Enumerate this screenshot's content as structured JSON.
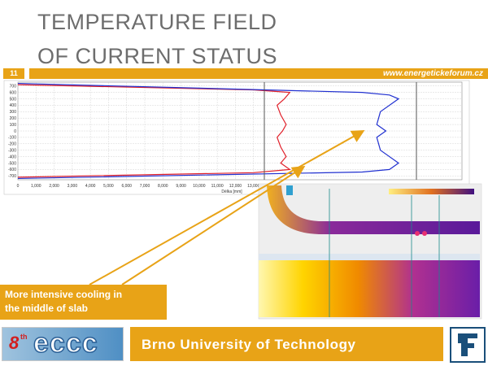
{
  "slide": {
    "title_lines": [
      "TEMPERATURE FIELD",
      "OF CURRENT STATUS"
    ],
    "number": "11",
    "url": "www.energetickeforum.cz",
    "callout_lines": [
      "More intensive cooling in",
      "the middle of slab"
    ],
    "footer": "Brno University of Technology",
    "logo": {
      "number": "8",
      "suffix": "th",
      "text": "eccc"
    }
  },
  "chart_data": {
    "type": "line",
    "x_label": "Délka [mm]",
    "xlim": [
      0,
      24500
    ],
    "ylim": [
      -760,
      760
    ],
    "xticks": [
      0,
      {
        "value": 1000,
        "label": "1,000"
      },
      {
        "value": 2000,
        "label": "2,000"
      },
      {
        "value": 3000,
        "label": "3,000"
      },
      {
        "value": 4000,
        "label": "4,000"
      },
      {
        "value": 5000,
        "label": "5,000"
      },
      {
        "value": 6000,
        "label": "6,000"
      },
      {
        "value": 7000,
        "label": "7,000"
      },
      {
        "value": 8000,
        "label": "8,000"
      },
      {
        "value": 9000,
        "label": "9,000"
      },
      {
        "value": 10000,
        "label": "10,000"
      },
      {
        "value": 11000,
        "label": "11,000"
      },
      {
        "value": 12000,
        "label": "12,000"
      },
      {
        "value": 13000,
        "label": "13,000"
      }
    ],
    "yticks": [
      700,
      600,
      500,
      400,
      300,
      200,
      100,
      0,
      -100,
      -200,
      -300,
      -400,
      -500,
      -600,
      -700
    ],
    "grid": true,
    "series": [
      {
        "color": "#e0202a",
        "x": [
          0,
          13000,
          15000,
          14700,
          14300,
          14500,
          14800,
          14600,
          14300,
          14500,
          14800,
          14500,
          15000,
          13000,
          0
        ],
        "values": [
          720,
          640,
          600,
          500,
          400,
          250,
          100,
          0,
          -100,
          -250,
          -400,
          -500,
          -600,
          -650,
          -720
        ]
      },
      {
        "color": "#2030d0",
        "x": [
          0,
          19000,
          20500,
          21000,
          20000,
          19800,
          20300,
          19800,
          20000,
          21000,
          20500,
          19000,
          0
        ],
        "values": [
          740,
          600,
          560,
          500,
          300,
          100,
          0,
          -100,
          -300,
          -500,
          -600,
          -640,
          -740
        ]
      }
    ]
  }
}
